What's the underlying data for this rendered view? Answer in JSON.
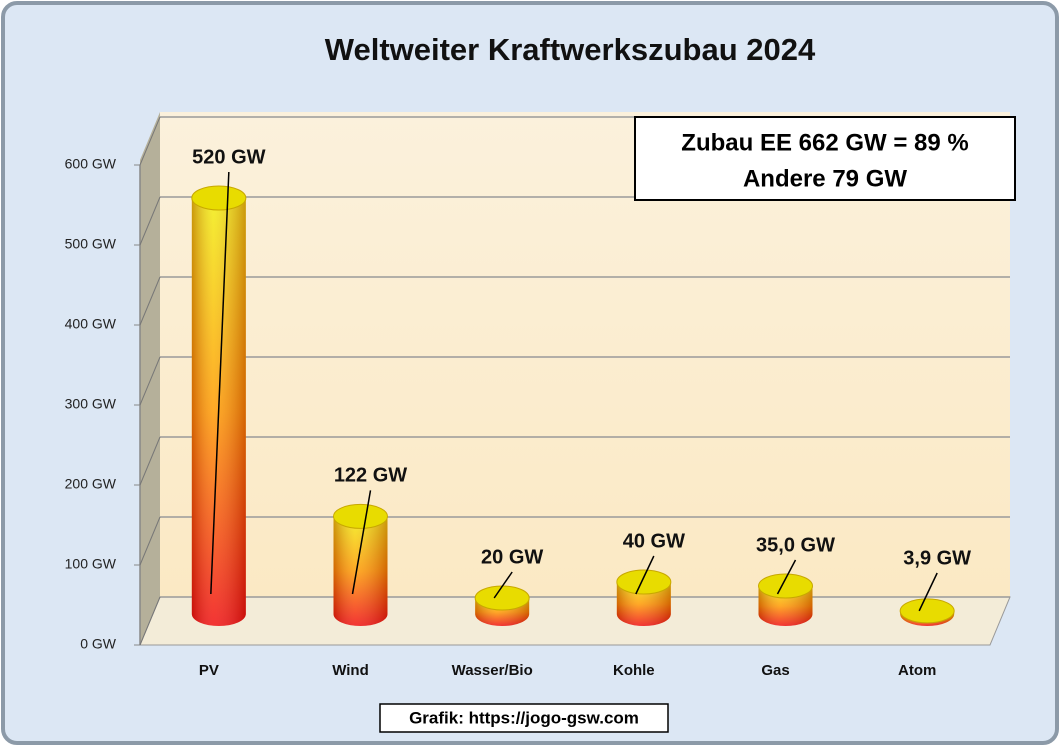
{
  "chart_data": {
    "type": "bar",
    "title": "Weltweiter Kraftwerkszubau 2024",
    "categories": [
      "PV",
      "Wind",
      "Wasser/Bio",
      "Kohle",
      "Gas",
      "Atom"
    ],
    "values": [
      520,
      122,
      20,
      40,
      35,
      3.9
    ],
    "value_labels": [
      "520 GW",
      "122 GW",
      "20 GW",
      "40 GW",
      "35,0 GW",
      "3,9 GW"
    ],
    "ylim": [
      0,
      600
    ],
    "yticks": [
      {
        "value": 0,
        "label": "0 GW"
      },
      {
        "value": 100,
        "label": "100 GW"
      },
      {
        "value": 200,
        "label": "200 GW"
      },
      {
        "value": 300,
        "label": "300 GW"
      },
      {
        "value": 400,
        "label": "400 GW"
      },
      {
        "value": 500,
        "label": "500 GW"
      },
      {
        "value": 600,
        "label": "600 GW"
      }
    ],
    "grid": true,
    "annotations": [
      "Zubau EE 662 GW = 89 %",
      "Andere 79 GW"
    ],
    "source": "Grafik: https://jogo-gsw.com"
  }
}
